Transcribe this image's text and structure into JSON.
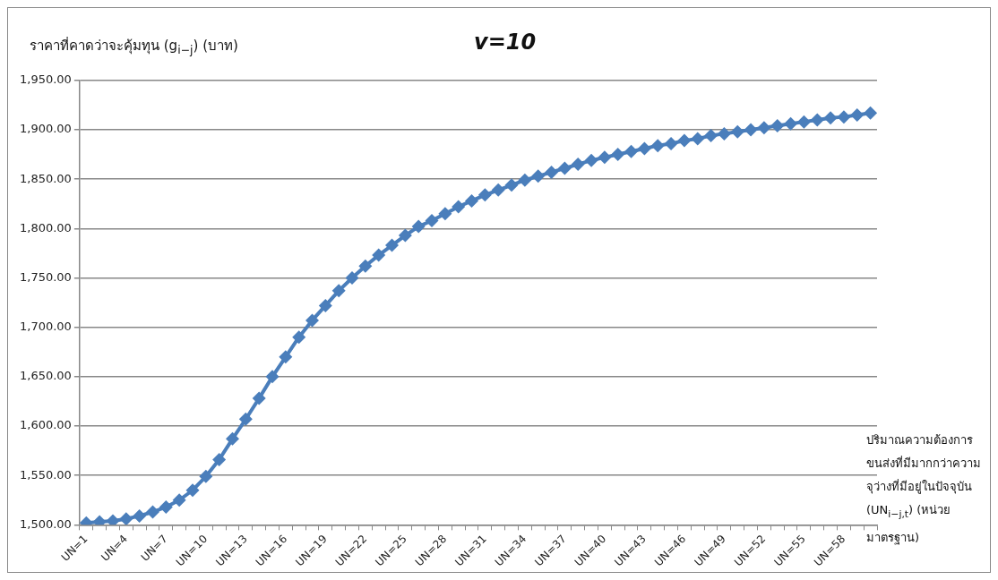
{
  "chart_data": {
    "type": "line",
    "title": "v=10",
    "ylabel": "ราคาที่คาดว่าจะคุ้มทุน (g$_{i−j}$) (บาท)",
    "xlabel": "ปริมาณความต้องการขนส่งที่มีมากกว่าความจุว่างที่มีอยู่ในปัจจุบัน (UN$_{i−j,t}$) (หน่วย มาตรฐาน)",
    "categories": [
      "UN=1",
      null,
      null,
      "UN=4",
      null,
      null,
      "UN=7",
      null,
      null,
      "UN=10",
      null,
      null,
      "UN=13",
      null,
      null,
      "UN=16",
      null,
      null,
      "UN=19",
      null,
      null,
      "UN=22",
      null,
      null,
      "UN=25",
      null,
      null,
      "UN=28",
      null,
      null,
      "UN=31",
      null,
      null,
      "UN=34",
      null,
      null,
      "UN=37",
      null,
      null,
      "UN=40",
      null,
      null,
      "UN=43",
      null,
      null,
      "UN=46",
      null,
      null,
      "UN=49",
      null,
      null,
      "UN=52",
      null,
      null,
      "UN=55",
      null,
      null,
      "UN=58",
      null,
      null
    ],
    "series": [
      {
        "color": "#4a7ebb",
        "values": [
          1502,
          1503,
          1504,
          1506,
          1509,
          1513,
          1518,
          1525,
          1535,
          1549,
          1566,
          1587,
          1607,
          1628,
          1650,
          1670,
          1690,
          1707,
          1722,
          1737,
          1750,
          1762,
          1773,
          1783,
          1793,
          1802,
          1808,
          1815,
          1822,
          1828,
          1834,
          1839,
          1844,
          1849,
          1853,
          1857,
          1861,
          1865,
          1869,
          1872,
          1875,
          1878,
          1881,
          1884,
          1886,
          1889,
          1891,
          1894,
          1896,
          1898,
          1900,
          1902,
          1904,
          1906,
          1908,
          1910,
          1912,
          1913,
          1915,
          1917
        ]
      }
    ],
    "ylim": [
      1500,
      1950
    ],
    "yticks": [
      {
        "value": 1500,
        "label": "1,500.00"
      },
      {
        "value": 1550,
        "label": "1,550.00"
      },
      {
        "value": 1600,
        "label": "1,600.00"
      },
      {
        "value": 1650,
        "label": "1,650.00"
      },
      {
        "value": 1700,
        "label": "1,700.00"
      },
      {
        "value": 1750,
        "label": "1,750.00"
      },
      {
        "value": 1800,
        "label": "1,800.00"
      },
      {
        "value": 1850,
        "label": "1,850.00"
      },
      {
        "value": 1900,
        "label": "1,900.00"
      },
      {
        "value": 1950,
        "label": "1,950.00"
      }
    ],
    "grid": "y",
    "marker": "diamond",
    "line_style": "solid",
    "legend": false
  }
}
